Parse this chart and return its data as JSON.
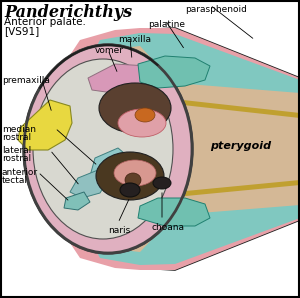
{
  "title": "Panderichthys",
  "subtitle1": "Anterior palate.",
  "subtitle2": "[VS91]",
  "bg_color": "#ffffff",
  "colors": {
    "pink_outer": "#e8a0a8",
    "teal_palatine": "#80c8c0",
    "tan_pterygoid": "#d4b896",
    "yellow_premaxilla": "#e8d840",
    "pink_head": "#e0b0c0",
    "white_snout": "#e8e8e8",
    "gray_dark": "#706858",
    "pink_vomer": "#d898b0",
    "dark_brown": "#4a3020",
    "orange_brown": "#b86020",
    "teal_rostral": "#90c8c0",
    "gold_strip": "#c0a030",
    "black": "#101010",
    "outline": "#202020"
  }
}
